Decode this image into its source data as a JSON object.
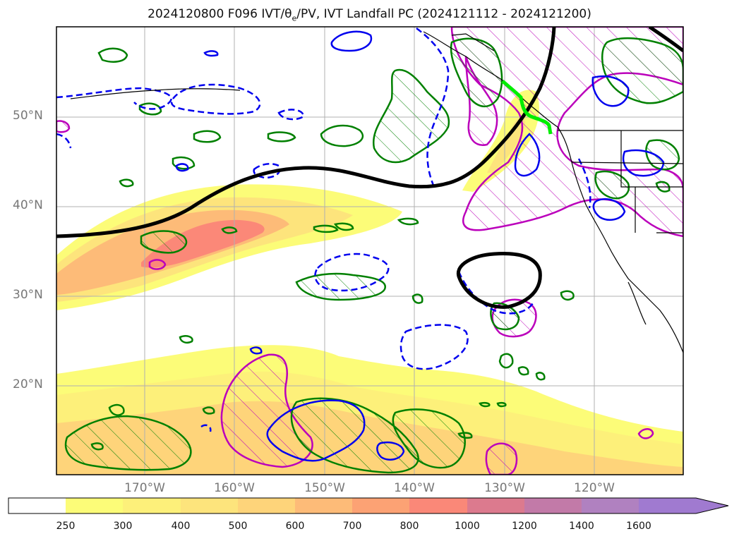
{
  "title": {
    "prefix": "2024120800 F096 IVT/θ",
    "sub": "e",
    "suffix": "/PV, IVT Landfall PC (2024121112 - 2024121200)"
  },
  "map": {
    "lat_labels": [
      "50°N",
      "40°N",
      "30°N",
      "20°N"
    ],
    "lon_labels": [
      "170°W",
      "160°W",
      "150°W",
      "140°W",
      "130°W",
      "120°W"
    ],
    "region": "North Pacific / West coast of North America",
    "contour_colors": {
      "ivt_fill_low": "#fbf97a",
      "ivt_fill_mid": "#fdd77a",
      "ivt_fill_high": "#fb8878",
      "theta_e_pos": "#008000",
      "theta_e_neg": "#0000ee",
      "pv": "#bb00bb",
      "landfall_line": "#000000",
      "landfall_segment": "#00ee00"
    }
  },
  "colorbar": {
    "ticks": [
      "250",
      "300",
      "400",
      "500",
      "600",
      "700",
      "800",
      "1000",
      "1200",
      "1400",
      "1600"
    ],
    "colors": [
      "#ffffff",
      "#fcfc78",
      "#fdf07a",
      "#fde47c",
      "#fed47a",
      "#fdbb78",
      "#fca274",
      "#fa8878",
      "#dc7a8e",
      "#c27aa8",
      "#b081c0",
      "#a07ad0"
    ],
    "extend": "max"
  }
}
